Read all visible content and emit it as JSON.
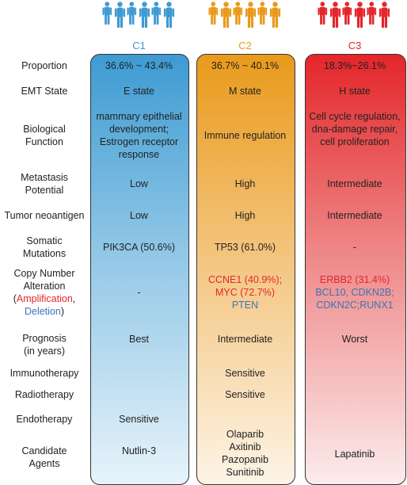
{
  "colors": {
    "c1": "#3d9bd2",
    "c2": "#e99a1b",
    "c3": "#e4262a",
    "amplification": "#e4262a",
    "deletion": "#3b74b7"
  },
  "icons": {
    "people": "person-silhouette-group-icon"
  },
  "clusters": [
    "C1",
    "C2",
    "C3"
  ],
  "rows": {
    "proportion": {
      "label": "Proportion",
      "c1": "36.6% ~ 43.4%",
      "c2": "36.7% ~ 40.1%",
      "c3": "18.3%~26.1%"
    },
    "emt": {
      "label": "EMT State",
      "c1": "E state",
      "c2": "M state",
      "c3": "H state"
    },
    "bio": {
      "label_l1": "Biological",
      "label_l2": "Function",
      "c1_l1": "mammary epithelial",
      "c1_l2": "development;",
      "c1_l3": "Estrogen receptor",
      "c1_l4": "response",
      "c2": "Immune regulation",
      "c3_l1": "Cell cycle regulation,",
      "c3_l2": "dna-damage repair,",
      "c3_l3": "cell proliferation"
    },
    "metastasis": {
      "label_l1": "Metastasis",
      "label_l2": "Potential",
      "c1": "Low",
      "c2": "High",
      "c3": "Intermediate"
    },
    "neoantigen": {
      "label": "Tumor neoantigen",
      "c1": "Low",
      "c2": "High",
      "c3": "Intermediate"
    },
    "somatic": {
      "label_l1": "Somatic",
      "label_l2": "Mutations",
      "c1": "PIK3CA (50.6%)",
      "c2": "TP53 (61.0%)",
      "c3": "-"
    },
    "cna": {
      "label_l1": "Copy Number",
      "label_l2": "Alteration",
      "label_open": "(",
      "label_amp": "Amplification",
      "label_comma": ",",
      "label_del": "Deletion",
      "label_close": ")",
      "c1": "-",
      "c2_l1": "CCNE1 (40.9%);",
      "c2_l2": "MYC (72.7%)",
      "c2_l3": "PTEN",
      "c3_l1": "ERBB2 (31.4%)",
      "c3_l2": "BCL10, CDKN2B;",
      "c3_l3": "CDKN2C;RUNX1"
    },
    "prognosis": {
      "label_l1": "Prognosis",
      "label_l2": "(in years)",
      "c1": "Best",
      "c2": "Intermediate",
      "c3": "Worst"
    },
    "immuno": {
      "label": "Immunotherapy",
      "c2": "Sensitive"
    },
    "radio": {
      "label": "Radiotherapy",
      "c2": "Sensitive"
    },
    "endo": {
      "label": "Endotherapy",
      "c1": "Sensitive"
    },
    "agents": {
      "label_l1": "Candidate",
      "label_l2": "Agents",
      "c1": "Nutlin-3",
      "c2_l1": "Olaparib",
      "c2_l2": "Axitinib",
      "c2_l3": "Pazopanib",
      "c2_l4": "Sunitinib",
      "c3": "Lapatinib"
    }
  }
}
